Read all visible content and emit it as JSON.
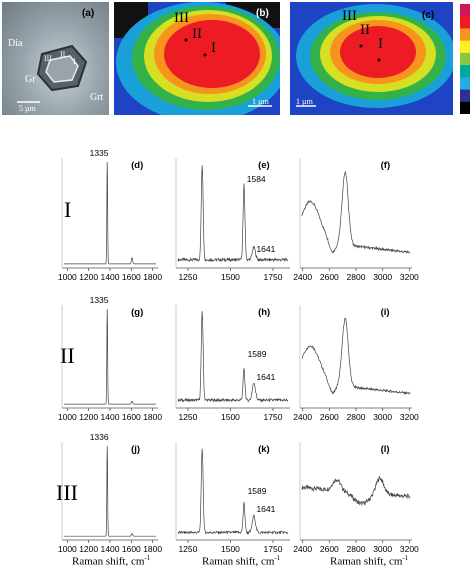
{
  "images": {
    "a": {
      "label": "(a)",
      "annotations": [
        "Dia",
        "III",
        "II",
        "I",
        "Gr",
        "Grt"
      ],
      "scale": "5 µm"
    },
    "b": {
      "label": "(b)",
      "annotations": [
        "III",
        "II",
        "I"
      ],
      "scale": "1 µm"
    },
    "c": {
      "label": "(c)",
      "annotations": [
        "III",
        "II",
        "I"
      ],
      "scale": "1 µm"
    },
    "colorbar_colors": [
      "#d4145a",
      "#ed1c24",
      "#f7931e",
      "#fcee21",
      "#8cc63f",
      "#00a99d",
      "#29abe2",
      "#2e3192",
      "#000000"
    ]
  },
  "rows": [
    {
      "label": "I",
      "panels": [
        "(d)",
        "(e)",
        "(f)"
      ]
    },
    {
      "label": "II",
      "panels": [
        "(g)",
        "(h)",
        "(i)"
      ]
    },
    {
      "label": "III",
      "panels": [
        "(j)",
        "(k)",
        "(l)"
      ]
    }
  ],
  "xlabels": [
    "Raman shift, cm",
    "Raman shift, cm",
    "Raman shift, cm"
  ],
  "chart_data": [
    {
      "panel": "(d)",
      "type": "line",
      "xlim": [
        950,
        1850
      ],
      "xticks": [
        1000,
        1200,
        1400,
        1600,
        1800
      ],
      "peaks": [
        {
          "x": 1335,
          "label": "1335"
        }
      ]
    },
    {
      "panel": "(e)",
      "type": "line",
      "xlim": [
        1180,
        1850
      ],
      "xticks": [
        1250,
        1500,
        1750
      ],
      "peaks": [
        {
          "x": 1584,
          "label": "1584"
        },
        {
          "x": 1641,
          "label": "1641"
        }
      ]
    },
    {
      "panel": "(f)",
      "type": "line",
      "xlim": [
        2380,
        3220
      ],
      "xticks": [
        2400,
        2600,
        2800,
        3000,
        3200
      ],
      "peaks": []
    },
    {
      "panel": "(g)",
      "type": "line",
      "xlim": [
        950,
        1850
      ],
      "xticks": [
        1000,
        1200,
        1400,
        1600,
        1800
      ],
      "peaks": [
        {
          "x": 1335,
          "label": "1335"
        }
      ]
    },
    {
      "panel": "(h)",
      "type": "line",
      "xlim": [
        1180,
        1850
      ],
      "xticks": [
        1250,
        1500,
        1750
      ],
      "peaks": [
        {
          "x": 1589,
          "label": "1589"
        },
        {
          "x": 1641,
          "label": "1641"
        }
      ]
    },
    {
      "panel": "(i)",
      "type": "line",
      "xlim": [
        2380,
        3220
      ],
      "xticks": [
        2400,
        2600,
        2800,
        3000,
        3200
      ],
      "peaks": []
    },
    {
      "panel": "(j)",
      "type": "line",
      "xlim": [
        950,
        1850
      ],
      "xticks": [
        1000,
        1200,
        1400,
        1600,
        1800
      ],
      "peaks": [
        {
          "x": 1336,
          "label": "1336"
        }
      ]
    },
    {
      "panel": "(k)",
      "type": "line",
      "xlim": [
        1180,
        1850
      ],
      "xticks": [
        1250,
        1500,
        1750
      ],
      "peaks": [
        {
          "x": 1589,
          "label": "1589"
        },
        {
          "x": 1641,
          "label": "1641"
        }
      ]
    },
    {
      "panel": "(l)",
      "type": "line",
      "xlim": [
        2380,
        3220
      ],
      "xticks": [
        2400,
        2600,
        2800,
        3000,
        3200
      ],
      "peaks": []
    }
  ]
}
